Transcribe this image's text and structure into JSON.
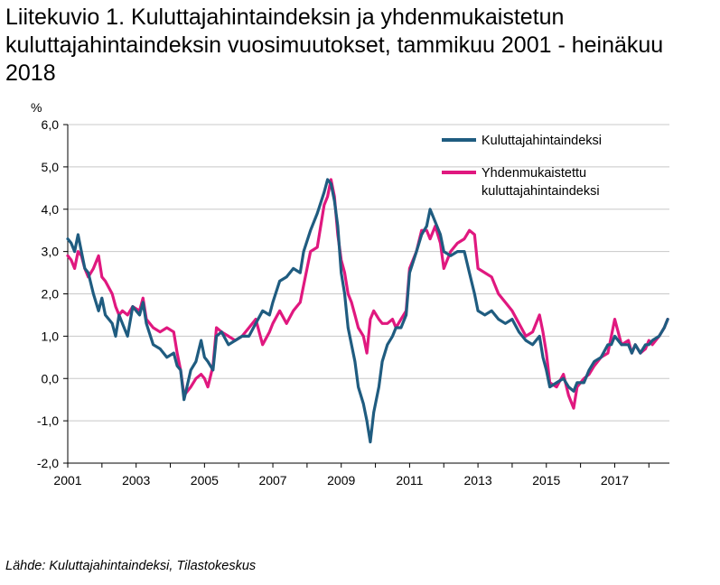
{
  "title": "Liitekuvio 1. Kuluttajahintaindeksin ja yhdenmukaistetun kuluttajahintaindeksin vuosimuutokset, tammikuu 2001 - heinäkuu 2018",
  "source": "Lähde: Kuluttajahintaindeksi, Tilastokeskus",
  "chart_data": {
    "type": "line",
    "title": "Liitekuvio 1. Kuluttajahintaindeksin ja yhdenmukaistetun kuluttajahintaindeksin vuosimuutokset, tammikuu 2001 - heinäkuu 2018",
    "xlabel": "",
    "ylabel": "%",
    "xlim": [
      2001.0,
      2018.6
    ],
    "ylim": [
      -2.0,
      6.0
    ],
    "y_ticks": [
      6.0,
      5.0,
      4.0,
      3.0,
      2.0,
      1.0,
      0.0,
      -1.0,
      -2.0
    ],
    "y_tick_labels": [
      "6,0",
      "5,0",
      "4,0",
      "3,0",
      "2,0",
      "1,0",
      "0,0",
      "-1,0",
      "-2,0"
    ],
    "x_ticks": [
      2001,
      2003,
      2005,
      2007,
      2009,
      2011,
      2013,
      2015,
      2017
    ],
    "x_tick_labels": [
      "2001",
      "2003",
      "2005",
      "2007",
      "2009",
      "2011",
      "2013",
      "2015",
      "2017"
    ],
    "grid": "horizontal",
    "legend_position": "top-right",
    "series": [
      {
        "name": "Kuluttajahintaindeksi",
        "color": "#1f5c80",
        "points": [
          [
            2001.0,
            3.3
          ],
          [
            2001.1,
            3.2
          ],
          [
            2001.2,
            3.0
          ],
          [
            2001.3,
            3.4
          ],
          [
            2001.4,
            3.0
          ],
          [
            2001.5,
            2.6
          ],
          [
            2001.6,
            2.5
          ],
          [
            2001.75,
            2.0
          ],
          [
            2001.9,
            1.6
          ],
          [
            2002.0,
            1.9
          ],
          [
            2002.1,
            1.5
          ],
          [
            2002.3,
            1.3
          ],
          [
            2002.4,
            1.0
          ],
          [
            2002.5,
            1.5
          ],
          [
            2002.6,
            1.3
          ],
          [
            2002.75,
            1.0
          ],
          [
            2002.9,
            1.7
          ],
          [
            2003.1,
            1.5
          ],
          [
            2003.2,
            1.8
          ],
          [
            2003.3,
            1.3
          ],
          [
            2003.5,
            0.8
          ],
          [
            2003.7,
            0.7
          ],
          [
            2003.9,
            0.5
          ],
          [
            2004.1,
            0.6
          ],
          [
            2004.2,
            0.3
          ],
          [
            2004.3,
            0.2
          ],
          [
            2004.4,
            -0.5
          ],
          [
            2004.6,
            0.2
          ],
          [
            2004.75,
            0.4
          ],
          [
            2004.9,
            0.9
          ],
          [
            2005.0,
            0.5
          ],
          [
            2005.1,
            0.4
          ],
          [
            2005.25,
            0.2
          ],
          [
            2005.35,
            1.0
          ],
          [
            2005.5,
            1.1
          ],
          [
            2005.7,
            0.8
          ],
          [
            2005.9,
            0.9
          ],
          [
            2006.1,
            1.0
          ],
          [
            2006.3,
            1.0
          ],
          [
            2006.5,
            1.3
          ],
          [
            2006.7,
            1.6
          ],
          [
            2006.9,
            1.5
          ],
          [
            2007.0,
            1.8
          ],
          [
            2007.2,
            2.3
          ],
          [
            2007.4,
            2.4
          ],
          [
            2007.6,
            2.6
          ],
          [
            2007.8,
            2.5
          ],
          [
            2007.9,
            3.0
          ],
          [
            2008.1,
            3.5
          ],
          [
            2008.3,
            3.9
          ],
          [
            2008.5,
            4.4
          ],
          [
            2008.6,
            4.7
          ],
          [
            2008.7,
            4.6
          ],
          [
            2008.8,
            4.2
          ],
          [
            2008.9,
            3.6
          ],
          [
            2009.0,
            2.5
          ],
          [
            2009.1,
            2.0
          ],
          [
            2009.2,
            1.2
          ],
          [
            2009.3,
            0.8
          ],
          [
            2009.4,
            0.4
          ],
          [
            2009.5,
            -0.2
          ],
          [
            2009.65,
            -0.6
          ],
          [
            2009.75,
            -1.0
          ],
          [
            2009.85,
            -1.5
          ],
          [
            2009.95,
            -0.8
          ],
          [
            2010.1,
            -0.2
          ],
          [
            2010.2,
            0.4
          ],
          [
            2010.35,
            0.8
          ],
          [
            2010.5,
            1.0
          ],
          [
            2010.6,
            1.2
          ],
          [
            2010.75,
            1.2
          ],
          [
            2010.9,
            1.5
          ],
          [
            2011.0,
            2.5
          ],
          [
            2011.2,
            3.0
          ],
          [
            2011.35,
            3.4
          ],
          [
            2011.5,
            3.6
          ],
          [
            2011.6,
            4.0
          ],
          [
            2011.75,
            3.7
          ],
          [
            2011.9,
            3.4
          ],
          [
            2012.0,
            3.0
          ],
          [
            2012.2,
            2.9
          ],
          [
            2012.4,
            3.0
          ],
          [
            2012.6,
            3.0
          ],
          [
            2012.75,
            2.5
          ],
          [
            2012.9,
            2.0
          ],
          [
            2013.0,
            1.6
          ],
          [
            2013.2,
            1.5
          ],
          [
            2013.4,
            1.6
          ],
          [
            2013.6,
            1.4
          ],
          [
            2013.8,
            1.3
          ],
          [
            2014.0,
            1.4
          ],
          [
            2014.2,
            1.1
          ],
          [
            2014.4,
            0.9
          ],
          [
            2014.6,
            0.8
          ],
          [
            2014.8,
            1.0
          ],
          [
            2014.9,
            0.5
          ],
          [
            2015.0,
            0.2
          ],
          [
            2015.1,
            -0.2
          ],
          [
            2015.3,
            -0.1
          ],
          [
            2015.5,
            0.0
          ],
          [
            2015.65,
            -0.2
          ],
          [
            2015.8,
            -0.3
          ],
          [
            2015.9,
            -0.1
          ],
          [
            2016.1,
            -0.1
          ],
          [
            2016.25,
            0.2
          ],
          [
            2016.4,
            0.4
          ],
          [
            2016.6,
            0.5
          ],
          [
            2016.8,
            0.8
          ],
          [
            2016.9,
            0.8
          ],
          [
            2017.0,
            1.0
          ],
          [
            2017.2,
            0.8
          ],
          [
            2017.4,
            0.8
          ],
          [
            2017.5,
            0.6
          ],
          [
            2017.6,
            0.8
          ],
          [
            2017.75,
            0.6
          ],
          [
            2017.9,
            0.8
          ],
          [
            2018.0,
            0.8
          ],
          [
            2018.1,
            0.9
          ],
          [
            2018.3,
            1.0
          ],
          [
            2018.45,
            1.2
          ],
          [
            2018.55,
            1.4
          ]
        ]
      },
      {
        "name": "Yhdenmukaistettu kuluttajahintaindeksi",
        "legend_lines": [
          "Yhdenmukaistettu",
          "kuluttajahintaindeksi"
        ],
        "color": "#e0187f",
        "points": [
          [
            2001.0,
            2.9
          ],
          [
            2001.1,
            2.8
          ],
          [
            2001.2,
            2.6
          ],
          [
            2001.3,
            3.0
          ],
          [
            2001.4,
            2.9
          ],
          [
            2001.5,
            2.6
          ],
          [
            2001.6,
            2.4
          ],
          [
            2001.75,
            2.6
          ],
          [
            2001.9,
            2.9
          ],
          [
            2002.0,
            2.4
          ],
          [
            2002.1,
            2.3
          ],
          [
            2002.3,
            2.0
          ],
          [
            2002.4,
            1.7
          ],
          [
            2002.5,
            1.5
          ],
          [
            2002.6,
            1.6
          ],
          [
            2002.75,
            1.5
          ],
          [
            2002.9,
            1.7
          ],
          [
            2003.1,
            1.6
          ],
          [
            2003.2,
            1.9
          ],
          [
            2003.3,
            1.4
          ],
          [
            2003.5,
            1.2
          ],
          [
            2003.7,
            1.1
          ],
          [
            2003.9,
            1.2
          ],
          [
            2004.1,
            1.1
          ],
          [
            2004.2,
            0.6
          ],
          [
            2004.3,
            0.2
          ],
          [
            2004.4,
            -0.4
          ],
          [
            2004.6,
            -0.2
          ],
          [
            2004.75,
            0.0
          ],
          [
            2004.9,
            0.1
          ],
          [
            2005.0,
            0.0
          ],
          [
            2005.1,
            -0.2
          ],
          [
            2005.25,
            0.3
          ],
          [
            2005.35,
            1.2
          ],
          [
            2005.5,
            1.1
          ],
          [
            2005.7,
            1.0
          ],
          [
            2005.9,
            0.9
          ],
          [
            2006.1,
            1.0
          ],
          [
            2006.3,
            1.2
          ],
          [
            2006.5,
            1.4
          ],
          [
            2006.7,
            0.8
          ],
          [
            2006.9,
            1.1
          ],
          [
            2007.0,
            1.3
          ],
          [
            2007.2,
            1.6
          ],
          [
            2007.4,
            1.3
          ],
          [
            2007.6,
            1.6
          ],
          [
            2007.8,
            1.8
          ],
          [
            2007.9,
            2.2
          ],
          [
            2008.1,
            3.0
          ],
          [
            2008.3,
            3.1
          ],
          [
            2008.5,
            4.1
          ],
          [
            2008.6,
            4.3
          ],
          [
            2008.7,
            4.7
          ],
          [
            2008.8,
            4.3
          ],
          [
            2008.9,
            3.4
          ],
          [
            2009.0,
            2.8
          ],
          [
            2009.1,
            2.5
          ],
          [
            2009.2,
            2.0
          ],
          [
            2009.3,
            1.8
          ],
          [
            2009.4,
            1.5
          ],
          [
            2009.5,
            1.2
          ],
          [
            2009.65,
            1.0
          ],
          [
            2009.75,
            0.6
          ],
          [
            2009.85,
            1.4
          ],
          [
            2009.95,
            1.6
          ],
          [
            2010.1,
            1.4
          ],
          [
            2010.2,
            1.3
          ],
          [
            2010.35,
            1.3
          ],
          [
            2010.5,
            1.4
          ],
          [
            2010.6,
            1.2
          ],
          [
            2010.75,
            1.4
          ],
          [
            2010.9,
            1.6
          ],
          [
            2011.0,
            2.6
          ],
          [
            2011.2,
            3.0
          ],
          [
            2011.35,
            3.5
          ],
          [
            2011.5,
            3.5
          ],
          [
            2011.6,
            3.3
          ],
          [
            2011.75,
            3.6
          ],
          [
            2011.9,
            3.2
          ],
          [
            2012.0,
            2.6
          ],
          [
            2012.2,
            3.0
          ],
          [
            2012.4,
            3.2
          ],
          [
            2012.6,
            3.3
          ],
          [
            2012.75,
            3.5
          ],
          [
            2012.9,
            3.4
          ],
          [
            2013.0,
            2.6
          ],
          [
            2013.2,
            2.5
          ],
          [
            2013.4,
            2.4
          ],
          [
            2013.6,
            2.0
          ],
          [
            2013.8,
            1.8
          ],
          [
            2014.0,
            1.6
          ],
          [
            2014.2,
            1.3
          ],
          [
            2014.4,
            1.0
          ],
          [
            2014.6,
            1.1
          ],
          [
            2014.8,
            1.5
          ],
          [
            2014.9,
            1.1
          ],
          [
            2015.0,
            0.6
          ],
          [
            2015.1,
            -0.1
          ],
          [
            2015.3,
            -0.2
          ],
          [
            2015.5,
            0.1
          ],
          [
            2015.65,
            -0.4
          ],
          [
            2015.8,
            -0.7
          ],
          [
            2015.9,
            -0.2
          ],
          [
            2016.1,
            0.0
          ],
          [
            2016.25,
            0.1
          ],
          [
            2016.4,
            0.3
          ],
          [
            2016.6,
            0.5
          ],
          [
            2016.8,
            0.6
          ],
          [
            2016.9,
            1.0
          ],
          [
            2017.0,
            1.4
          ],
          [
            2017.2,
            0.8
          ],
          [
            2017.4,
            0.9
          ],
          [
            2017.5,
            0.6
          ],
          [
            2017.6,
            0.8
          ],
          [
            2017.75,
            0.6
          ],
          [
            2017.9,
            0.7
          ],
          [
            2018.0,
            0.9
          ],
          [
            2018.1,
            0.8
          ],
          [
            2018.3,
            1.0
          ],
          [
            2018.45,
            1.2
          ],
          [
            2018.55,
            1.4
          ]
        ]
      }
    ]
  }
}
